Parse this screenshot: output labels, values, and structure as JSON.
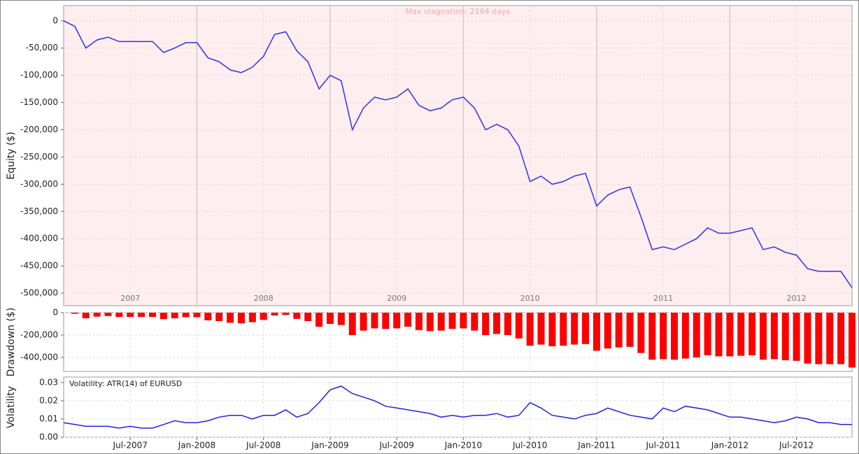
{
  "chart_data": [
    {
      "type": "line",
      "ylabel": "Equity ($)",
      "annotation": "Max stagnation: 2164 days",
      "year_labels": [
        "2007",
        "2008",
        "2009",
        "2010",
        "2011",
        "2012"
      ],
      "x": [
        "2007-01",
        "2007-02",
        "2007-03",
        "2007-04",
        "2007-05",
        "2007-06",
        "2007-07",
        "2007-08",
        "2007-09",
        "2007-10",
        "2007-11",
        "2007-12",
        "2008-01",
        "2008-02",
        "2008-03",
        "2008-04",
        "2008-05",
        "2008-06",
        "2008-07",
        "2008-08",
        "2008-09",
        "2008-10",
        "2008-11",
        "2008-12",
        "2009-01",
        "2009-02",
        "2009-03",
        "2009-04",
        "2009-05",
        "2009-06",
        "2009-07",
        "2009-08",
        "2009-09",
        "2009-10",
        "2009-11",
        "2009-12",
        "2010-01",
        "2010-02",
        "2010-03",
        "2010-04",
        "2010-05",
        "2010-06",
        "2010-07",
        "2010-08",
        "2010-09",
        "2010-10",
        "2010-11",
        "2010-12",
        "2011-01",
        "2011-02",
        "2011-03",
        "2011-04",
        "2011-05",
        "2011-06",
        "2011-07",
        "2011-08",
        "2011-09",
        "2011-10",
        "2011-11",
        "2011-12",
        "2012-01",
        "2012-02",
        "2012-03",
        "2012-04",
        "2012-05",
        "2012-06",
        "2012-07",
        "2012-08",
        "2012-09",
        "2012-10",
        "2012-11",
        "2012-12"
      ],
      "series": [
        {
          "color": "#3030e8",
          "values": [
            0,
            -10000,
            -50000,
            -35000,
            -30000,
            -38000,
            -38000,
            -38000,
            -38000,
            -58000,
            -50000,
            -40000,
            -40000,
            -68000,
            -75000,
            -90000,
            -95000,
            -85000,
            -65000,
            -25000,
            -20000,
            -55000,
            -75000,
            -125000,
            -100000,
            -110000,
            -200000,
            -160000,
            -140000,
            -145000,
            -140000,
            -125000,
            -155000,
            -165000,
            -160000,
            -145000,
            -140000,
            -160000,
            -200000,
            -190000,
            -200000,
            -230000,
            -295000,
            -285000,
            -300000,
            -295000,
            -285000,
            -280000,
            -340000,
            -320000,
            -310000,
            -305000,
            -360000,
            -420000,
            -415000,
            -420000,
            -410000,
            -400000,
            -380000,
            -390000,
            -390000,
            -385000,
            -380000,
            -420000,
            -415000,
            -425000,
            -430000,
            -455000,
            -460000,
            -460000,
            -460000,
            -490000
          ]
        }
      ],
      "xlim": [
        "2007-01",
        "2012-12"
      ],
      "ylim": [
        -523000,
        28000
      ],
      "yticks": [
        0,
        {
          "value": -50000,
          "label": "-50,000"
        },
        {
          "value": -100000,
          "label": "-100,000"
        },
        {
          "value": -150000,
          "label": "-150,000"
        },
        {
          "value": -200000,
          "label": "-200,000"
        },
        {
          "value": -250000,
          "label": "-250,000"
        },
        {
          "value": -300000,
          "label": "-300,000"
        },
        {
          "value": -350000,
          "label": "-350,000"
        },
        {
          "value": -400000,
          "label": "-400,000"
        },
        {
          "value": -450000,
          "label": "-450,000"
        },
        {
          "value": -500000,
          "label": "-500,000"
        }
      ],
      "grid": true
    },
    {
      "type": "bar",
      "ylabel": "Drawdown ($)",
      "x": [
        "2007-01",
        "2007-02",
        "2007-03",
        "2007-04",
        "2007-05",
        "2007-06",
        "2007-07",
        "2007-08",
        "2007-09",
        "2007-10",
        "2007-11",
        "2007-12",
        "2008-01",
        "2008-02",
        "2008-03",
        "2008-04",
        "2008-05",
        "2008-06",
        "2008-07",
        "2008-08",
        "2008-09",
        "2008-10",
        "2008-11",
        "2008-12",
        "2009-01",
        "2009-02",
        "2009-03",
        "2009-04",
        "2009-05",
        "2009-06",
        "2009-07",
        "2009-08",
        "2009-09",
        "2009-10",
        "2009-11",
        "2009-12",
        "2010-01",
        "2010-02",
        "2010-03",
        "2010-04",
        "2010-05",
        "2010-06",
        "2010-07",
        "2010-08",
        "2010-09",
        "2010-10",
        "2010-11",
        "2010-12",
        "2011-01",
        "2011-02",
        "2011-03",
        "2011-04",
        "2011-05",
        "2011-06",
        "2011-07",
        "2011-08",
        "2011-09",
        "2011-10",
        "2011-11",
        "2011-12",
        "2012-01",
        "2012-02",
        "2012-03",
        "2012-04",
        "2012-05",
        "2012-06",
        "2012-07",
        "2012-08",
        "2012-09",
        "2012-10",
        "2012-11",
        "2012-12"
      ],
      "series": [
        {
          "color": "#ff0000",
          "values": [
            0,
            -10000,
            -50000,
            -35000,
            -30000,
            -38000,
            -38000,
            -38000,
            -38000,
            -58000,
            -50000,
            -40000,
            -40000,
            -68000,
            -75000,
            -90000,
            -95000,
            -85000,
            -65000,
            -25000,
            -20000,
            -55000,
            -75000,
            -125000,
            -100000,
            -110000,
            -200000,
            -160000,
            -140000,
            -145000,
            -140000,
            -125000,
            -155000,
            -165000,
            -160000,
            -145000,
            -140000,
            -160000,
            -200000,
            -190000,
            -200000,
            -230000,
            -295000,
            -285000,
            -300000,
            -295000,
            -285000,
            -280000,
            -340000,
            -320000,
            -310000,
            -305000,
            -360000,
            -420000,
            -415000,
            -420000,
            -410000,
            -400000,
            -380000,
            -390000,
            -390000,
            -385000,
            -380000,
            -420000,
            -415000,
            -425000,
            -430000,
            -455000,
            -460000,
            -460000,
            -460000,
            -490000
          ]
        }
      ],
      "xlim": [
        "2007-01",
        "2012-12"
      ],
      "ylim": [
        -525000,
        0
      ],
      "yticks": [
        0,
        {
          "value": -200000,
          "label": "-200,000"
        },
        {
          "value": -400000,
          "label": "-400,000"
        }
      ],
      "grid": true
    },
    {
      "type": "line",
      "ylabel": "Volatility",
      "x": [
        "2007-01",
        "2007-02",
        "2007-03",
        "2007-04",
        "2007-05",
        "2007-06",
        "2007-07",
        "2007-08",
        "2007-09",
        "2007-10",
        "2007-11",
        "2007-12",
        "2008-01",
        "2008-02",
        "2008-03",
        "2008-04",
        "2008-05",
        "2008-06",
        "2008-07",
        "2008-08",
        "2008-09",
        "2008-10",
        "2008-11",
        "2008-12",
        "2009-01",
        "2009-02",
        "2009-03",
        "2009-04",
        "2009-05",
        "2009-06",
        "2009-07",
        "2009-08",
        "2009-09",
        "2009-10",
        "2009-11",
        "2009-12",
        "2010-01",
        "2010-02",
        "2010-03",
        "2010-04",
        "2010-05",
        "2010-06",
        "2010-07",
        "2010-08",
        "2010-09",
        "2010-10",
        "2010-11",
        "2010-12",
        "2011-01",
        "2011-02",
        "2011-03",
        "2011-04",
        "2011-05",
        "2011-06",
        "2011-07",
        "2011-08",
        "2011-09",
        "2011-10",
        "2011-11",
        "2011-12",
        "2012-01",
        "2012-02",
        "2012-03",
        "2012-04",
        "2012-05",
        "2012-06",
        "2012-07",
        "2012-08",
        "2012-09",
        "2012-10",
        "2012-11",
        "2012-12"
      ],
      "series": [
        {
          "name": "Volatility: ATR(14) of EURUSD",
          "color": "#2020e8",
          "values": [
            0.008,
            0.007,
            0.006,
            0.006,
            0.006,
            0.005,
            0.006,
            0.005,
            0.005,
            0.007,
            0.009,
            0.008,
            0.008,
            0.009,
            0.011,
            0.012,
            0.012,
            0.01,
            0.012,
            0.012,
            0.015,
            0.011,
            0.013,
            0.019,
            0.026,
            0.028,
            0.024,
            0.022,
            0.02,
            0.017,
            0.016,
            0.015,
            0.014,
            0.013,
            0.011,
            0.012,
            0.011,
            0.012,
            0.012,
            0.013,
            0.011,
            0.012,
            0.019,
            0.016,
            0.012,
            0.011,
            0.01,
            0.012,
            0.013,
            0.016,
            0.014,
            0.012,
            0.011,
            0.01,
            0.016,
            0.014,
            0.017,
            0.016,
            0.015,
            0.013,
            0.011,
            0.011,
            0.01,
            0.009,
            0.008,
            0.009,
            0.011,
            0.01,
            0.008,
            0.008,
            0.007,
            0.007
          ]
        }
      ],
      "xlim": [
        "2007-01",
        "2012-12"
      ],
      "ylim": [
        0,
        0.033
      ],
      "yticks": [
        {
          "value": 0,
          "label": "0.00"
        },
        0.01,
        0.02,
        0.03
      ],
      "xticks": [
        {
          "value": "2007-07",
          "label": "Jul-2007"
        },
        {
          "value": "2008-01",
          "label": "Jan-2008"
        },
        {
          "value": "2008-07",
          "label": "Jul-2008"
        },
        {
          "value": "2009-01",
          "label": "Jan-2009"
        },
        {
          "value": "2009-07",
          "label": "Jul-2009"
        },
        {
          "value": "2010-01",
          "label": "Jan-2010"
        },
        {
          "value": "2010-07",
          "label": "Jul-2010"
        },
        {
          "value": "2011-01",
          "label": "Jan-2011"
        },
        {
          "value": "2011-07",
          "label": "Jul-2011"
        },
        {
          "value": "2012-01",
          "label": "Jan-2012"
        },
        {
          "value": "2012-07",
          "label": "Jul-2012"
        }
      ],
      "grid": true
    }
  ]
}
